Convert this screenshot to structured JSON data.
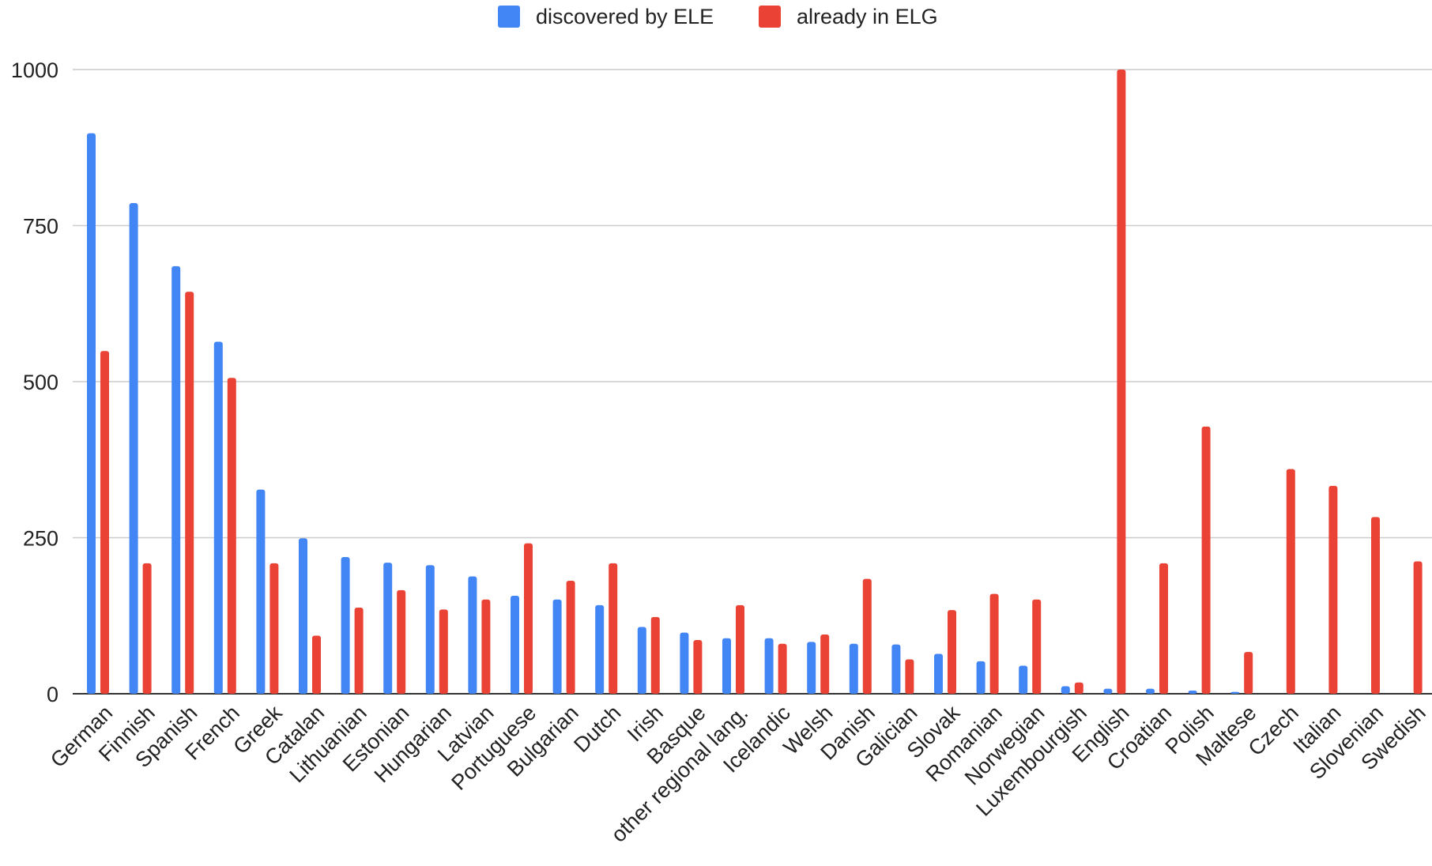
{
  "chart_data": {
    "type": "bar",
    "title": "",
    "xlabel": "",
    "ylabel": "",
    "ylim": [
      0,
      1000
    ],
    "yticks": [
      0,
      250,
      500,
      750,
      1000
    ],
    "grid": true,
    "legend_position": "top-center",
    "categories": [
      "German",
      "Finnish",
      "Spanish",
      "French",
      "Greek",
      "Catalan",
      "Lithuanian",
      "Estonian",
      "Hungarian",
      "Latvian",
      "Portuguese",
      "Bulgarian",
      "Dutch",
      "Irish",
      "Basque",
      "other regional lang.",
      "Icelandic",
      "Welsh",
      "Danish",
      "Galician",
      "Slovak",
      "Romanian",
      "Norwegian",
      "Luxembourgish",
      "English",
      "Croatian",
      "Polish",
      "Maltese",
      "Czech",
      "Italian",
      "Slovenian",
      "Swedish"
    ],
    "series": [
      {
        "name": "discovered by ELE",
        "color": "#4285f4",
        "values": [
          898,
          786,
          685,
          564,
          327,
          249,
          219,
          210,
          206,
          188,
          157,
          151,
          142,
          107,
          98,
          89,
          89,
          83,
          80,
          79,
          64,
          52,
          45,
          12,
          8,
          8,
          5,
          3,
          0,
          0,
          0,
          0
        ]
      },
      {
        "name": "already in ELG",
        "color": "#ea4335",
        "values": [
          549,
          209,
          644,
          506,
          209,
          93,
          138,
          166,
          135,
          151,
          241,
          181,
          209,
          123,
          86,
          142,
          80,
          95,
          184,
          55,
          134,
          160,
          151,
          18,
          1000,
          209,
          428,
          67,
          360,
          333,
          283,
          212
        ]
      }
    ]
  }
}
